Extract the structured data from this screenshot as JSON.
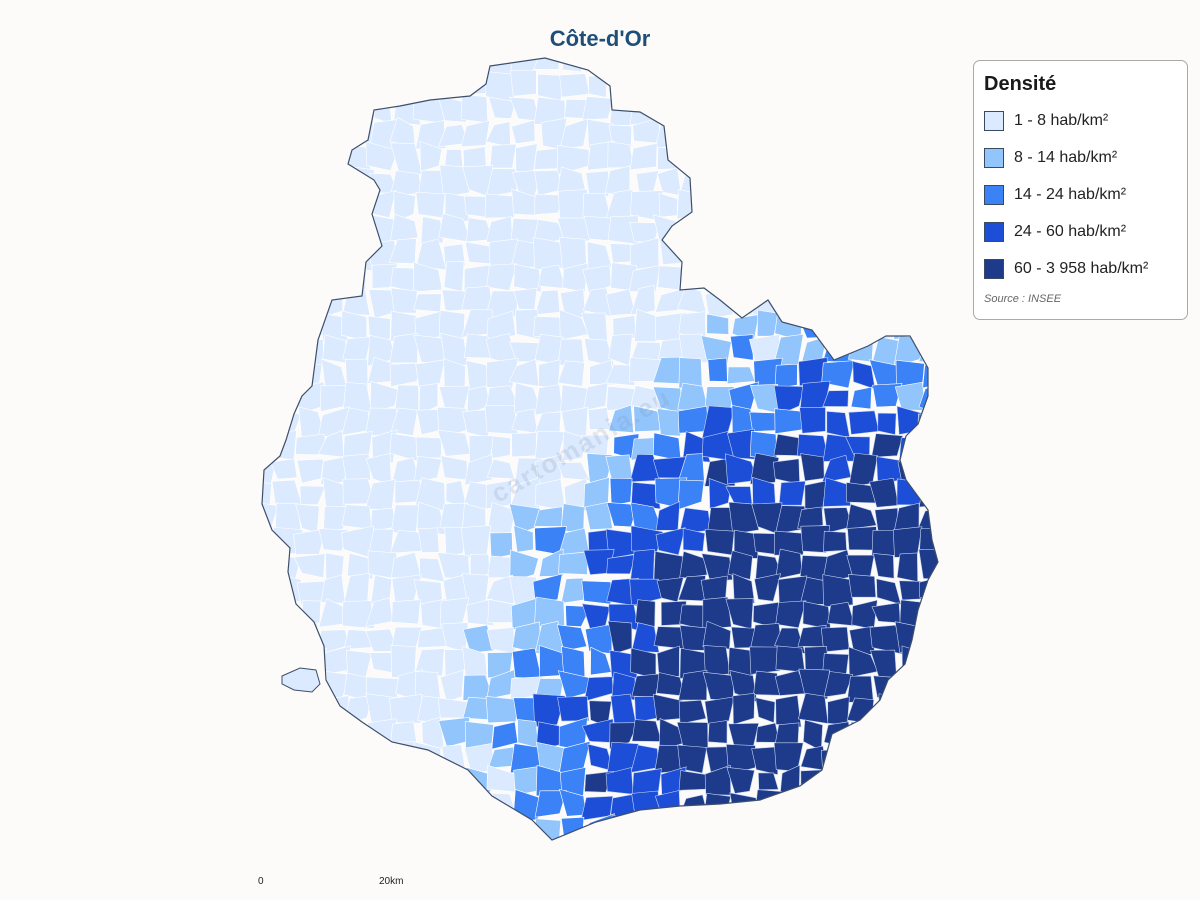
{
  "title": "Côte-d'Or",
  "legend": {
    "title": "Densité",
    "items": [
      {
        "label": "1 - 8 hab/km²",
        "color": "#dbeafe"
      },
      {
        "label": "8 - 14 hab/km²",
        "color": "#93c5fd"
      },
      {
        "label": "14 - 24 hab/km²",
        "color": "#3b82f6"
      },
      {
        "label": "24 - 60 hab/km²",
        "color": "#1d4ed8"
      },
      {
        "label": "60 - 3 958 hab/km²",
        "color": "#1e3a8a"
      }
    ],
    "source": "Source : INSEE"
  },
  "watermark": "cartomania.eu",
  "scale": {
    "start": "0",
    "end": "20km"
  }
}
